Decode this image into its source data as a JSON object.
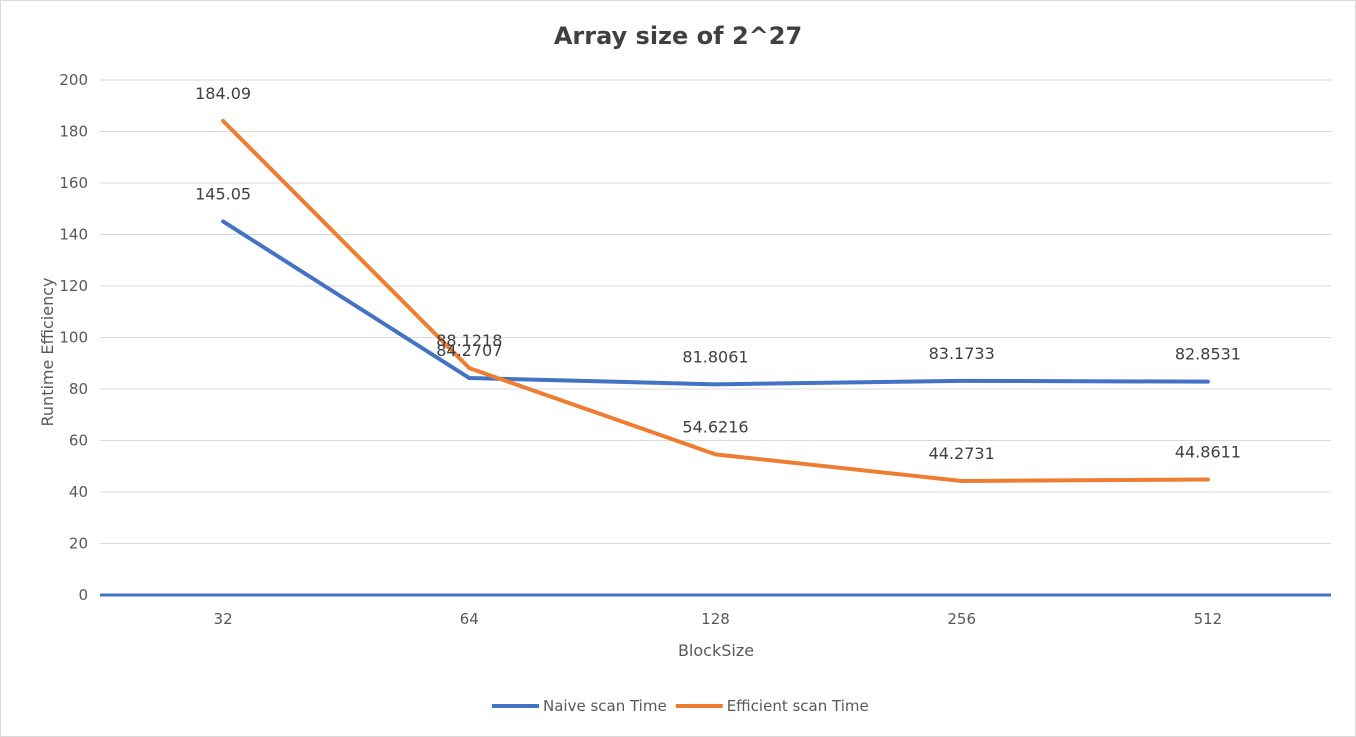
{
  "chart_data": {
    "type": "line",
    "title": "Array size of 2^27",
    "xlabel": "BlockSize",
    "ylabel": "Runtime Efficiency",
    "categories": [
      "32",
      "64",
      "128",
      "256",
      "512"
    ],
    "ylim": [
      0,
      200
    ],
    "yticks": [
      0,
      20,
      40,
      60,
      80,
      100,
      120,
      140,
      160,
      180,
      200
    ],
    "grid": true,
    "legend": "bottom",
    "series": [
      {
        "name": "Naive scan Time",
        "color": "#4472c4",
        "values": [
          145.05,
          84.2707,
          81.8061,
          83.1733,
          82.8531
        ],
        "labels": [
          "145.05",
          "84.2707",
          "81.8061",
          "83.1733",
          "82.8531"
        ]
      },
      {
        "name": "Efficient scan Time",
        "color": "#ed7d31",
        "values": [
          184.09,
          88.1218,
          54.6216,
          44.2731,
          44.8611
        ],
        "labels": [
          "184.09",
          "88.1218",
          "54.6216",
          "44.2731",
          "44.8611"
        ]
      }
    ]
  }
}
